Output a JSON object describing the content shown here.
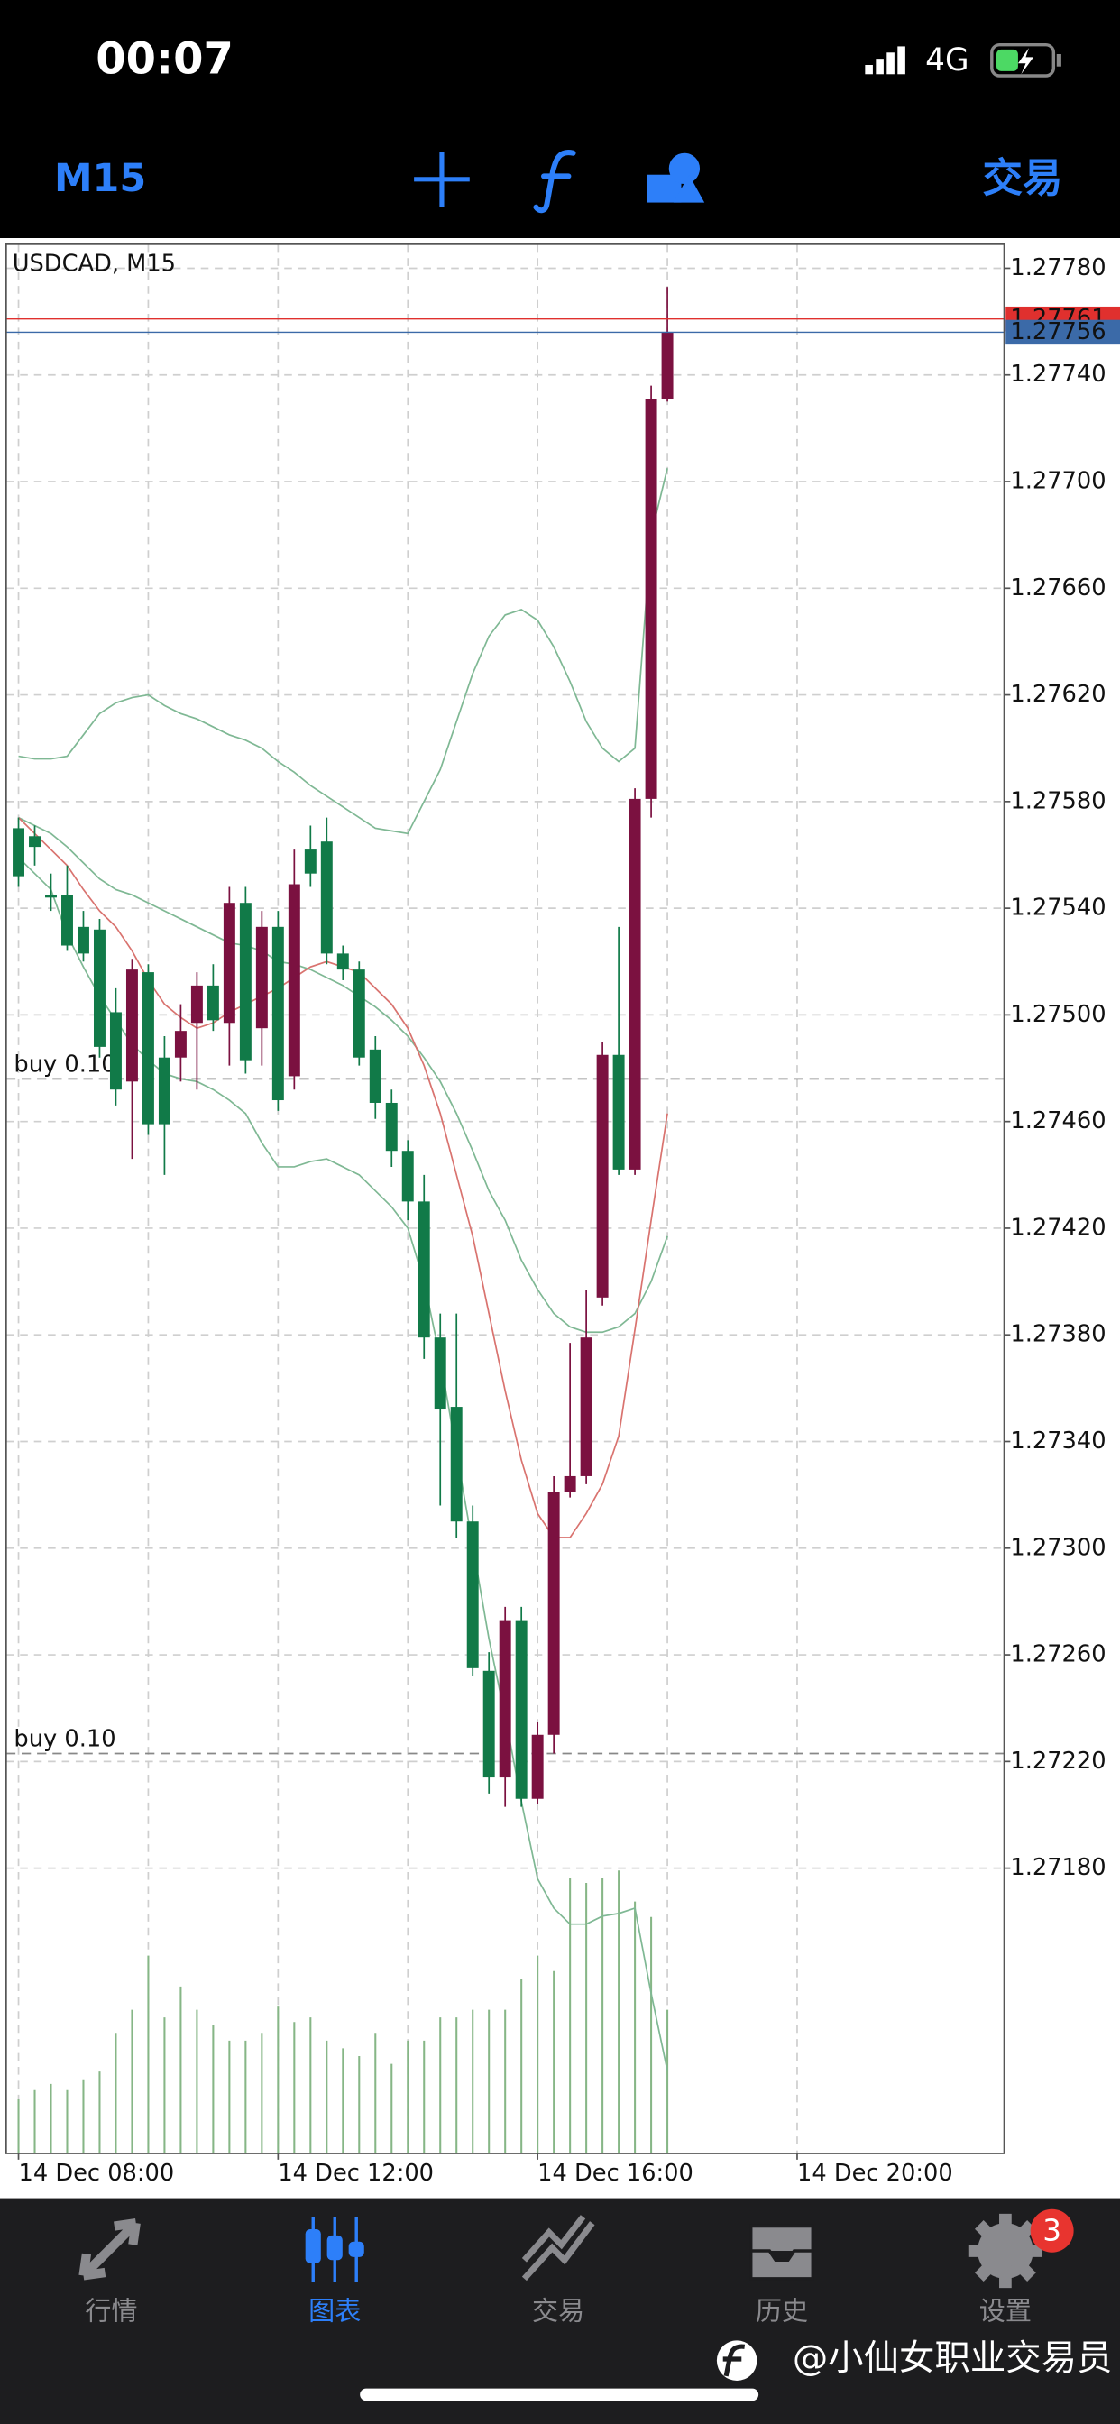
{
  "status_bar": {
    "time": "00:07",
    "network": "4G"
  },
  "toolbar": {
    "timeframe": "M15",
    "trade": "交易"
  },
  "chart_data": {
    "type": "candlestick",
    "title": "USDCAD, M15",
    "open": [
      1.2757,
      1.27567,
      1.27545,
      1.27545,
      1.27533,
      1.27532,
      1.27501,
      1.27475,
      1.27516,
      1.27484,
      1.27484,
      1.27497,
      1.27511,
      1.27497,
      1.27542,
      1.27495,
      1.27533,
      1.27477,
      1.27562,
      1.27565,
      1.27523,
      1.27517,
      1.27487,
      1.27467,
      1.27449,
      1.2743,
      1.27379,
      1.27353,
      1.2731,
      1.27254,
      1.27214,
      1.27273,
      1.27206,
      1.2723,
      1.27321,
      1.27327,
      1.27394,
      1.27485,
      1.27442,
      1.27581,
      1.27731
    ],
    "high": [
      1.27574,
      1.27571,
      1.27553,
      1.27556,
      1.27539,
      1.27536,
      1.2751,
      1.27521,
      1.27519,
      1.27492,
      1.27504,
      1.27516,
      1.27519,
      1.27548,
      1.27548,
      1.27539,
      1.27539,
      1.27562,
      1.27571,
      1.27574,
      1.27526,
      1.2752,
      1.27492,
      1.27472,
      1.27453,
      1.2744,
      1.27388,
      1.27388,
      1.27316,
      1.27261,
      1.27278,
      1.27278,
      1.27235,
      1.27327,
      1.27377,
      1.27397,
      1.2749,
      1.27533,
      1.27585,
      1.27736,
      1.27773
    ],
    "low": [
      1.27548,
      1.27556,
      1.27539,
      1.27524,
      1.2752,
      1.27484,
      1.27466,
      1.27446,
      1.27455,
      1.2744,
      1.27475,
      1.27472,
      1.27494,
      1.27481,
      1.27478,
      1.27481,
      1.27464,
      1.27472,
      1.27548,
      1.27519,
      1.27513,
      1.27481,
      1.27461,
      1.27443,
      1.27423,
      1.27371,
      1.27316,
      1.27304,
      1.27252,
      1.27208,
      1.27203,
      1.27203,
      1.27204,
      1.27223,
      1.27319,
      1.27324,
      1.27391,
      1.2744,
      1.2744,
      1.27574,
      1.2773
    ],
    "close": [
      1.27552,
      1.27563,
      1.27544,
      1.27526,
      1.27523,
      1.27488,
      1.27472,
      1.27517,
      1.27459,
      1.27459,
      1.27494,
      1.27511,
      1.27498,
      1.27542,
      1.27483,
      1.27533,
      1.27468,
      1.27549,
      1.27553,
      1.27523,
      1.27517,
      1.27484,
      1.27467,
      1.27449,
      1.2743,
      1.27379,
      1.27352,
      1.2731,
      1.27255,
      1.27214,
      1.27273,
      1.27206,
      1.2723,
      1.27321,
      1.27327,
      1.27379,
      1.27485,
      1.27442,
      1.27581,
      1.27731,
      1.27756
    ],
    "up_color": "#7b1140",
    "down_color": "#117a48",
    "indicators": [
      {
        "color": "#7fb894",
        "values": [
          1.27597,
          1.27596,
          1.27596,
          1.27597,
          1.27605,
          1.27613,
          1.27617,
          1.27619,
          1.2762,
          1.27616,
          1.27613,
          1.27611,
          1.27608,
          1.27605,
          1.27603,
          1.276,
          1.27595,
          1.27591,
          1.27586,
          1.27582,
          1.27578,
          1.27574,
          1.2757,
          1.27569,
          1.27568,
          1.2758,
          1.27592,
          1.2761,
          1.27628,
          1.27642,
          1.2765,
          1.27652,
          1.27648,
          1.27638,
          1.27625,
          1.2761,
          1.276,
          1.27595,
          1.276,
          1.2768,
          1.27705
        ]
      },
      {
        "color": "#7fb894",
        "values": [
          1.27574,
          1.27571,
          1.27568,
          1.27563,
          1.27557,
          1.27551,
          1.27547,
          1.27545,
          1.27542,
          1.27539,
          1.27536,
          1.27533,
          1.2753,
          1.27527,
          1.27526,
          1.27524,
          1.2752,
          1.27519,
          1.27517,
          1.27514,
          1.27511,
          1.27507,
          1.27503,
          1.27498,
          1.27492,
          1.27484,
          1.27475,
          1.27463,
          1.27449,
          1.27434,
          1.27423,
          1.27408,
          1.27397,
          1.27388,
          1.27383,
          1.27381,
          1.27381,
          1.27383,
          1.27388,
          1.274,
          1.27417
        ]
      },
      {
        "color": "#7fb894",
        "values": [
          1.27559,
          1.27553,
          1.27547,
          1.2753,
          1.27518,
          1.27507,
          1.27498,
          1.27489,
          1.27483,
          1.27478,
          1.27476,
          1.27475,
          1.27472,
          1.27468,
          1.27463,
          1.27452,
          1.27443,
          1.27443,
          1.27445,
          1.27446,
          1.27443,
          1.2744,
          1.27434,
          1.27428,
          1.2742,
          1.274,
          1.27371,
          1.27336,
          1.27301,
          1.27266,
          1.27237,
          1.27205,
          1.27176,
          1.27165,
          1.27159,
          1.27159,
          1.27162,
          1.27163,
          1.27165,
          1.27133,
          1.27104
        ]
      },
      {
        "color": "#d9736f",
        "values": [
          1.27574,
          1.27568,
          1.27562,
          1.27556,
          1.27547,
          1.27539,
          1.27533,
          1.27524,
          1.27513,
          1.27504,
          1.27499,
          1.27495,
          1.27497,
          1.27501,
          1.27504,
          1.27507,
          1.2751,
          1.27514,
          1.27518,
          1.2752,
          1.27518,
          1.27516,
          1.2751,
          1.27504,
          1.27495,
          1.27481,
          1.27463,
          1.2744,
          1.27417,
          1.27388,
          1.27359,
          1.27333,
          1.27313,
          1.27304,
          1.27304,
          1.27313,
          1.27324,
          1.27342,
          1.27382,
          1.27423,
          1.27463
        ]
      }
    ],
    "volume": {
      "color": "#86b686",
      "lim": [
        0,
        250
      ],
      "values": [
        35,
        41,
        45,
        41,
        48,
        53,
        78,
        93,
        128,
        88,
        108,
        93,
        83,
        73,
        73,
        78,
        95,
        85,
        88,
        73,
        68,
        63,
        78,
        58,
        73,
        73,
        88,
        88,
        93,
        93,
        93,
        113,
        128,
        118,
        178,
        175,
        178,
        183,
        163,
        153,
        93
      ]
    },
    "price_lines": [
      {
        "value": 1.27761,
        "label": "1.27761",
        "color": "#e0302e"
      },
      {
        "value": 1.27756,
        "label": "1.27756",
        "color": "#3b6aa8"
      }
    ],
    "orders": [
      {
        "value": 1.27476,
        "label": "buy 0.10"
      },
      {
        "value": 1.27223,
        "label": "buy 0.10"
      }
    ],
    "ylim": [
      1.27073,
      1.27789
    ],
    "yticks": [
      {
        "value": 1.2778,
        "label": "1.27780"
      },
      {
        "value": 1.2774,
        "label": "1.27740"
      },
      {
        "value": 1.277,
        "label": "1.27700"
      },
      {
        "value": 1.2766,
        "label": "1.27660"
      },
      {
        "value": 1.2762,
        "label": "1.27620"
      },
      {
        "value": 1.2758,
        "label": "1.27580"
      },
      {
        "value": 1.2754,
        "label": "1.27540"
      },
      {
        "value": 1.275,
        "label": "1.27500"
      },
      {
        "value": 1.2746,
        "label": "1.27460"
      },
      {
        "value": 1.2742,
        "label": "1.27420"
      },
      {
        "value": 1.2738,
        "label": "1.27380"
      },
      {
        "value": 1.2734,
        "label": "1.27340"
      },
      {
        "value": 1.273,
        "label": "1.27300"
      },
      {
        "value": 1.2726,
        "label": "1.27260"
      },
      {
        "value": 1.2722,
        "label": "1.27220"
      },
      {
        "value": 1.2718,
        "label": "1.27180"
      }
    ],
    "xlim": [
      -0.76,
      60.76
    ],
    "xticks": [
      {
        "value": 0,
        "label": "14 Dec 08:00"
      },
      {
        "value": 16,
        "label": "14 Dec 12:00"
      },
      {
        "value": 32,
        "label": "14 Dec 16:00"
      },
      {
        "value": 48,
        "label": "14 Dec 20:00"
      }
    ],
    "grid": true
  },
  "tab_bar": {
    "tabs": [
      "行情",
      "图表",
      "交易",
      "历史",
      "设置"
    ],
    "active": 1,
    "badge": 3
  },
  "watermark": "@小仙女职业交易员"
}
